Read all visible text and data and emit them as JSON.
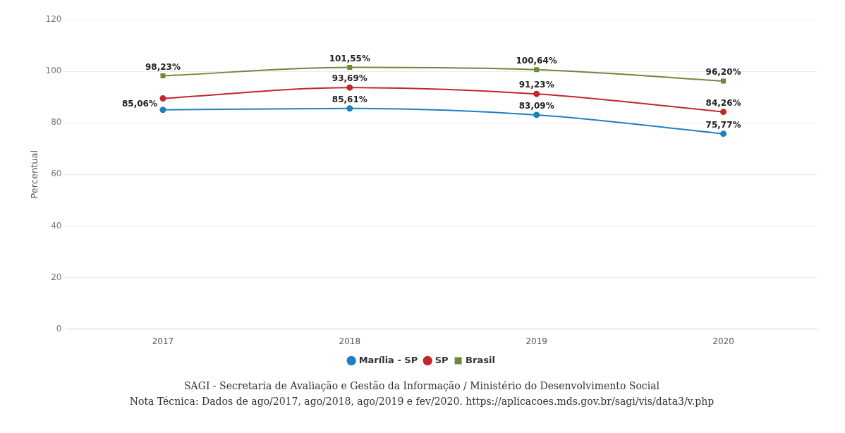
{
  "chart_data": {
    "type": "line",
    "categories": [
      "2017",
      "2018",
      "2019",
      "2020"
    ],
    "ylabel": "Percentual",
    "ylim": [
      0,
      120
    ],
    "yticks": [
      0,
      20,
      40,
      60,
      80,
      100,
      120
    ],
    "grid": "y",
    "legend": "bottom",
    "series": [
      {
        "name": "Marília - SP",
        "color": "#1f7fc0",
        "marker": "circle",
        "values": [
          85.06,
          85.61,
          83.09,
          75.77
        ],
        "value_labels": [
          "85,06%",
          "85,61%",
          "83,09%",
          "75,77%"
        ]
      },
      {
        "name": "SP",
        "color": "#c0282d",
        "marker": "circle",
        "values": [
          89.5,
          93.69,
          91.23,
          84.26
        ],
        "value_labels": [
          null,
          "93,69%",
          "91,23%",
          "84,26%"
        ]
      },
      {
        "name": "Brasil",
        "color": "#6b8a3a",
        "marker": "square",
        "values": [
          98.23,
          101.55,
          100.64,
          96.2
        ],
        "value_labels": [
          "98,23%",
          "101,55%",
          "100,64%",
          "96,20%"
        ]
      }
    ],
    "annotations": [
      "SAGI - Secretaria de Avaliação e Gestão da Informação / Ministério do Desenvolvimento Social",
      "Nota Técnica: Dados de ago/2017, ago/2018, ago/2019 e fev/2020. https://aplicacoes.mds.gov.br/sagi/vis/data3/v.php"
    ]
  }
}
